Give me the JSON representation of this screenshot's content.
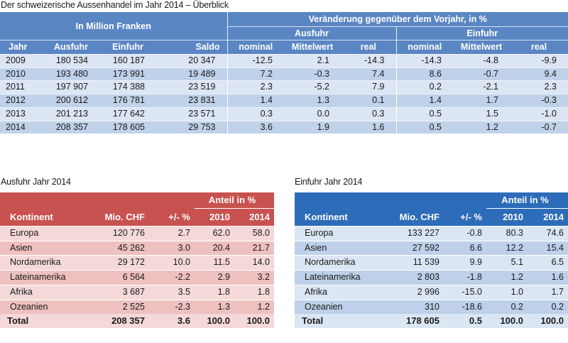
{
  "overview": {
    "title": "Der schweizerische Aussenhandel im Jahr 2014 – Überblick",
    "header_left": "In Million Franken",
    "header_right": "Veränderung gegenüber dem Vorjahr, in %",
    "group_export": "Ausfuhr",
    "group_import": "Einfuhr",
    "columns": [
      "Jahr",
      "Ausfuhr",
      "Einfuhr",
      "Saldo",
      "nominal",
      "Mittelwert",
      "real",
      "nominal",
      "Mittelwert",
      "real"
    ],
    "rows": [
      [
        "2009",
        "180 534",
        "160 187",
        "20 347",
        "-12.5",
        "2.1",
        "-14.3",
        "-14.3",
        "-4.8",
        "-9.9"
      ],
      [
        "2010",
        "193 480",
        "173 991",
        "19 489",
        "7.2",
        "-0.3",
        "7.4",
        "8.6",
        "-0.7",
        "9.4"
      ],
      [
        "2011",
        "197 907",
        "174 388",
        "23 519",
        "2.3",
        "-5.2",
        "7.9",
        "0.2",
        "-2.1",
        "2.3"
      ],
      [
        "2012",
        "200 612",
        "176 781",
        "23 831",
        "1.4",
        "1.3",
        "0.1",
        "1.4",
        "1.7",
        "-0.3"
      ],
      [
        "2013",
        "201 213",
        "177 642",
        "23 571",
        "0.3",
        "0.0",
        "0.3",
        "0.5",
        "1.5",
        "-1.0"
      ],
      [
        "2014",
        "208 357",
        "178 605",
        "29 753",
        "3.6",
        "1.9",
        "1.6",
        "0.5",
        "1.2",
        "-0.7"
      ]
    ]
  },
  "export": {
    "title": "Ausfuhr Jahr 2014",
    "anteil": "Anteil in %",
    "columns": [
      "Kontinent",
      "Mio. CHF",
      "+/- %",
      "2010",
      "2014"
    ],
    "rows": [
      [
        "Europa",
        "120 776",
        "2.7",
        "62.0",
        "58.0"
      ],
      [
        "Asien",
        "45 262",
        "3.0",
        "20.4",
        "21.7"
      ],
      [
        "Nordamerika",
        "29 172",
        "10.0",
        "11.5",
        "14.0"
      ],
      [
        "Lateinamerika",
        "6 564",
        "-2.2",
        "2.9",
        "3.2"
      ],
      [
        "Afrika",
        "3 687",
        "3.5",
        "1.8",
        "1.8"
      ],
      [
        "Ozeanien",
        "2 525",
        "-2.3",
        "1.3",
        "1.2"
      ]
    ],
    "total": [
      "Total",
      "208 357",
      "3.6",
      "100.0",
      "100.0"
    ]
  },
  "import": {
    "title": "Einfuhr Jahr 2014",
    "anteil": "Anteil in %",
    "columns": [
      "Kontinent",
      "Mio. CHF",
      "+/- %",
      "2010",
      "2014"
    ],
    "rows": [
      [
        "Europa",
        "133 227",
        "-0.8",
        "80.3",
        "74.6"
      ],
      [
        "Asien",
        "27 592",
        "6.6",
        "12.2",
        "15.4"
      ],
      [
        "Nordamerika",
        "11 539",
        "9.9",
        "5.1",
        "6.5"
      ],
      [
        "Lateinamerika",
        "2 803",
        "-1.8",
        "1.2",
        "1.6"
      ],
      [
        "Afrika",
        "2 996",
        "-15.0",
        "1.0",
        "1.7"
      ],
      [
        "Ozeanien",
        "310",
        "-18.6",
        "0.2",
        "0.2"
      ]
    ],
    "total": [
      "Total",
      "178 605",
      "0.5",
      "100.0",
      "100.0"
    ]
  },
  "colors": {
    "overview_header": "#5b86c4",
    "overview_row_light": "#dbe5f3",
    "overview_row_dark": "#c0d1ea",
    "export_header": "#c85250",
    "export_row_light": "#f5d9d9",
    "export_row_dark": "#eec0c0",
    "import_header": "#2d6cb8",
    "import_row_light": "#dbe6f4",
    "import_row_dark": "#bed0ea"
  }
}
